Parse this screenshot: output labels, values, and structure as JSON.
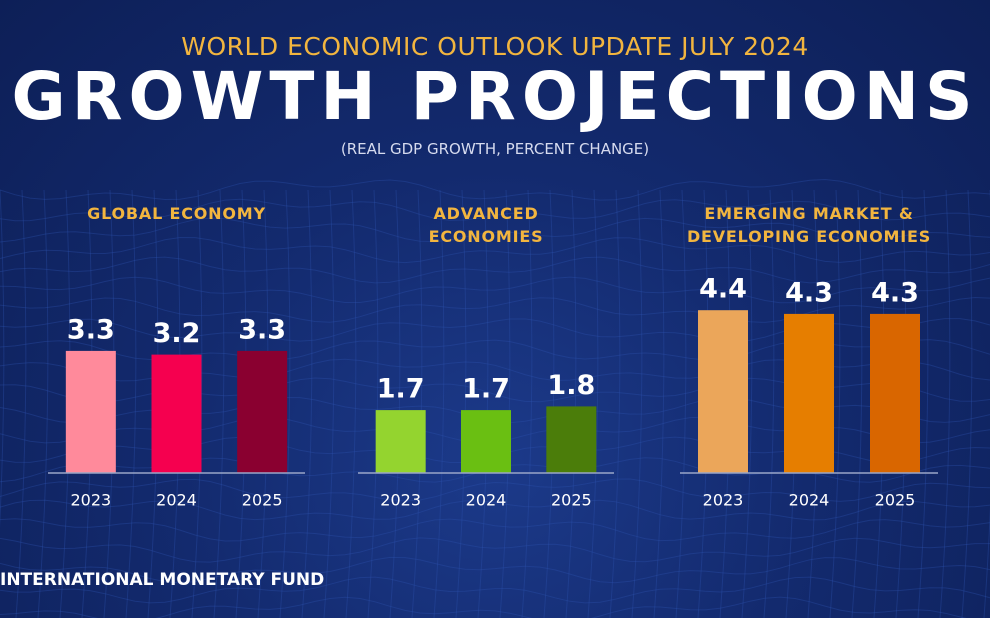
{
  "header": {
    "supertitle": "WORLD ECONOMIC OUTLOOK UPDATE JULY 2024",
    "title": "GROWTH PROJECTIONS",
    "subtitle": "(REAL GDP GROWTH, PERCENT CHANGE)"
  },
  "chart_data": [
    {
      "type": "bar",
      "title": "GLOBAL ECONOMY",
      "categories": [
        "2023",
        "2024",
        "2025"
      ],
      "values": [
        3.3,
        3.2,
        3.3
      ],
      "colors": [
        "#ff8a9b",
        "#f5004f",
        "#8a0030"
      ]
    },
    {
      "type": "bar",
      "title": "ADVANCED ECONOMIES",
      "categories": [
        "2023",
        "2024",
        "2025"
      ],
      "values": [
        1.7,
        1.7,
        1.8
      ],
      "colors": [
        "#94d42f",
        "#6abf12",
        "#4b7d0a"
      ]
    },
    {
      "type": "bar",
      "title": "EMERGING MARKET & DEVELOPING ECONOMIES",
      "categories": [
        "2023",
        "2024",
        "2025"
      ],
      "values": [
        4.4,
        4.3,
        4.3
      ],
      "colors": [
        "#eba65a",
        "#e67e00",
        "#d96600"
      ]
    }
  ],
  "footer": "INTERNATIONAL MONETARY FUND"
}
